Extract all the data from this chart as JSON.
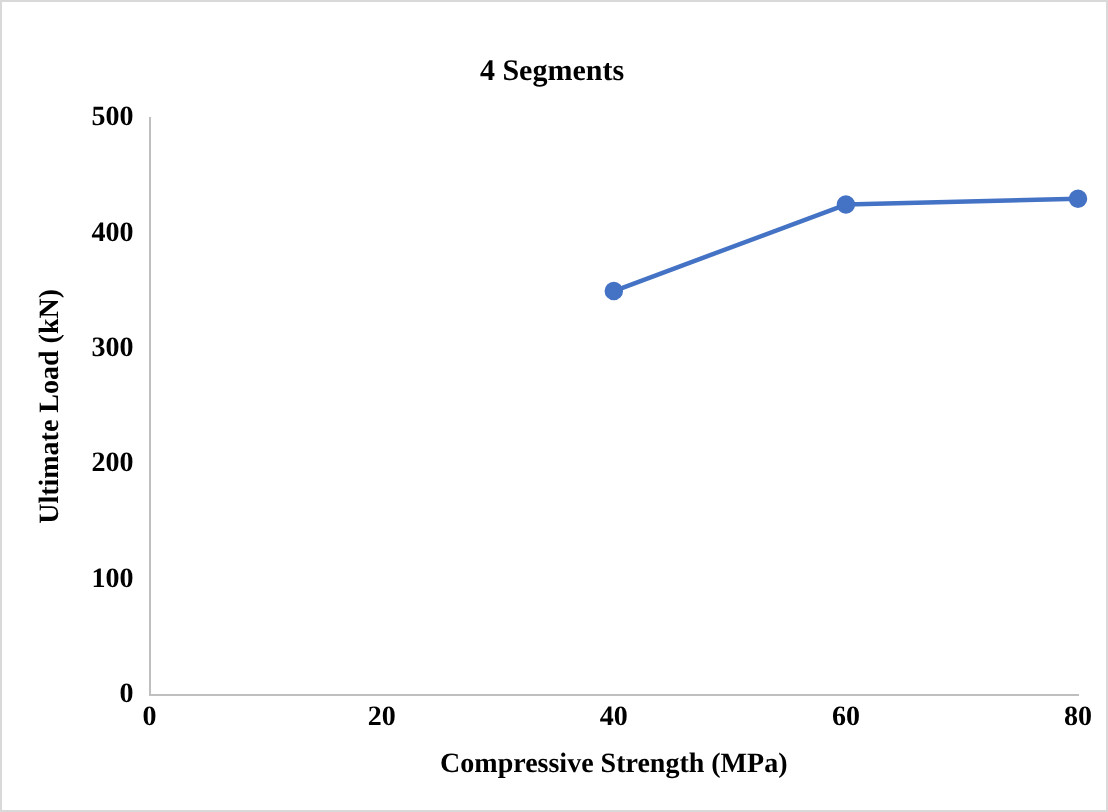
{
  "chart_data": {
    "type": "line",
    "title": "4 Segments",
    "xlabel": "Compressive Strength (MPa)",
    "ylabel": "Ultimate Load (kN)",
    "x": [
      40,
      60,
      80
    ],
    "series": [
      {
        "color": "#4472c4",
        "values": [
          350,
          425,
          430
        ]
      }
    ],
    "xlim": [
      0,
      80
    ],
    "xticks": [
      0,
      20,
      40,
      60,
      80
    ],
    "ylim": [
      0,
      500
    ],
    "yticks": [
      0,
      100,
      200,
      300,
      400,
      500
    ],
    "grid": false,
    "legend": false,
    "marker": "circle",
    "line_style": "solid"
  }
}
